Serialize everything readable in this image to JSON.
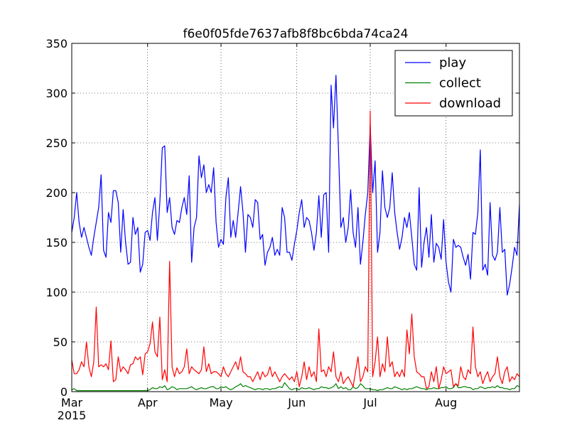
{
  "chart_data": {
    "type": "line",
    "title": "f6e0f05fde7637afb8f8bc6bda74ca24",
    "xlabel": "",
    "ylabel": "",
    "x_start": "2015-03-01",
    "x_end": "2015-08-31",
    "ylim": [
      0,
      350
    ],
    "yticks": [
      0,
      50,
      100,
      150,
      200,
      250,
      300,
      350
    ],
    "xticks": [
      {
        "date": "2015-03-01",
        "label": "Mar",
        "sublabel": "2015"
      },
      {
        "date": "2015-04-01",
        "label": "Apr",
        "sublabel": ""
      },
      {
        "date": "2015-05-01",
        "label": "May",
        "sublabel": ""
      },
      {
        "date": "2015-06-01",
        "label": "Jun",
        "sublabel": ""
      },
      {
        "date": "2015-07-01",
        "label": "Jul",
        "sublabel": ""
      },
      {
        "date": "2015-08-01",
        "label": "Aug",
        "sublabel": ""
      }
    ],
    "grid": true,
    "legend": "top-right",
    "series": [
      {
        "name": "play",
        "color": "#0000ff",
        "values": [
          160,
          175,
          200,
          170,
          155,
          165,
          155,
          145,
          137,
          155,
          170,
          185,
          218,
          142,
          135,
          180,
          170,
          202,
          202,
          190,
          140,
          183,
          150,
          128,
          130,
          175,
          158,
          165,
          120,
          128,
          160,
          162,
          152,
          180,
          195,
          152,
          190,
          245,
          247,
          180,
          195,
          165,
          158,
          172,
          170,
          185,
          195,
          178,
          217,
          130,
          165,
          175,
          237,
          215,
          228,
          200,
          208,
          200,
          225,
          170,
          145,
          153,
          148,
          195,
          215,
          155,
          172,
          155,
          180,
          206,
          180,
          140,
          178,
          175,
          165,
          193,
          190,
          153,
          158,
          127,
          140,
          145,
          155,
          137,
          143,
          137,
          185,
          175,
          140,
          140,
          132,
          148,
          162,
          180,
          193,
          165,
          175,
          172,
          160,
          142,
          160,
          197,
          155,
          198,
          200,
          140,
          308,
          265,
          318,
          245,
          165,
          175,
          150,
          165,
          203,
          160,
          145,
          185,
          128,
          150,
          178,
          200,
          268,
          200,
          232,
          140,
          160,
          222,
          185,
          175,
          185,
          220,
          180,
          160,
          143,
          155,
          175,
          165,
          180,
          155,
          128,
          122,
          205,
          125,
          150,
          165,
          135,
          178,
          130,
          149,
          145,
          133,
          173,
          130,
          110,
          100,
          153,
          145,
          147,
          145,
          135,
          127,
          138,
          113,
          160,
          158,
          180,
          243,
          122,
          128,
          117,
          190,
          137,
          132,
          140,
          185,
          140,
          143,
          97,
          108,
          125,
          145,
          137,
          188
        ]
      },
      {
        "name": "collect",
        "color": "#008000",
        "values": [
          2,
          3,
          1,
          1,
          1,
          1,
          1,
          1,
          1,
          1,
          1,
          1,
          1,
          1,
          1,
          1,
          1,
          1,
          1,
          1,
          1,
          1,
          1,
          1,
          1,
          1,
          1,
          1,
          1,
          1,
          1,
          1,
          2,
          4,
          3,
          3,
          5,
          4,
          6,
          2,
          3,
          5,
          4,
          2,
          3,
          3,
          3,
          3,
          4,
          5,
          3,
          2,
          3,
          4,
          3,
          3,
          4,
          5,
          5,
          3,
          3,
          5,
          4,
          5,
          3,
          2,
          3,
          5,
          6,
          8,
          5,
          6,
          5,
          4,
          3,
          2,
          3,
          3,
          2,
          3,
          3,
          2,
          3,
          3,
          4,
          5,
          4,
          9,
          6,
          3,
          2,
          3,
          3,
          2,
          4,
          3,
          3,
          4,
          3,
          2,
          3,
          3,
          5,
          4,
          4,
          3,
          4,
          5,
          8,
          3,
          5,
          3,
          4,
          2,
          2,
          5,
          3,
          4,
          8,
          6,
          3,
          3,
          3,
          2,
          2,
          1,
          2,
          2,
          3,
          4,
          3,
          3,
          5,
          4,
          3,
          2,
          3,
          2,
          3,
          3,
          4,
          5,
          4,
          3,
          3,
          2,
          3,
          3,
          4,
          3,
          3,
          4,
          4,
          5,
          3,
          3,
          4,
          8,
          4,
          4,
          5,
          5,
          4,
          4,
          2,
          3,
          3,
          5,
          4,
          3,
          4,
          4,
          5,
          4,
          6,
          4,
          4,
          3,
          3,
          2,
          3,
          3,
          6,
          5
        ]
      },
      {
        "name": "download",
        "color": "#ff0000",
        "values": [
          32,
          18,
          18,
          22,
          30,
          25,
          50,
          25,
          15,
          30,
          85,
          25,
          27,
          25,
          28,
          22,
          51,
          10,
          12,
          35,
          20,
          25,
          22,
          18,
          27,
          28,
          35,
          32,
          35,
          17,
          38,
          40,
          48,
          70,
          40,
          35,
          75,
          12,
          22,
          10,
          131,
          25,
          15,
          24,
          18,
          20,
          25,
          43,
          18,
          25,
          22,
          20,
          18,
          22,
          45,
          20,
          28,
          18,
          20,
          20,
          18,
          15,
          25,
          18,
          15,
          20,
          25,
          30,
          22,
          35,
          20,
          18,
          15,
          15,
          10,
          15,
          20,
          12,
          20,
          15,
          17,
          25,
          15,
          20,
          15,
          10,
          15,
          18,
          15,
          12,
          15,
          10,
          20,
          5,
          15,
          30,
          12,
          25,
          15,
          20,
          10,
          63,
          20,
          22,
          15,
          25,
          20,
          40,
          15,
          10,
          20,
          8,
          12,
          15,
          10,
          5,
          20,
          35,
          10,
          15,
          25,
          20,
          282,
          15,
          30,
          55,
          15,
          28,
          20,
          55,
          25,
          30,
          15,
          20,
          15,
          22,
          15,
          62,
          38,
          78,
          35,
          20,
          18,
          15,
          15,
          3,
          5,
          20,
          10,
          25,
          3,
          12,
          25,
          18,
          20,
          22,
          5,
          8,
          6,
          25,
          15,
          12,
          22,
          18,
          65,
          25,
          15,
          20,
          8,
          15,
          20,
          10,
          15,
          18,
          35,
          15,
          8,
          20,
          25,
          10,
          15,
          12,
          18,
          15
        ]
      }
    ]
  }
}
